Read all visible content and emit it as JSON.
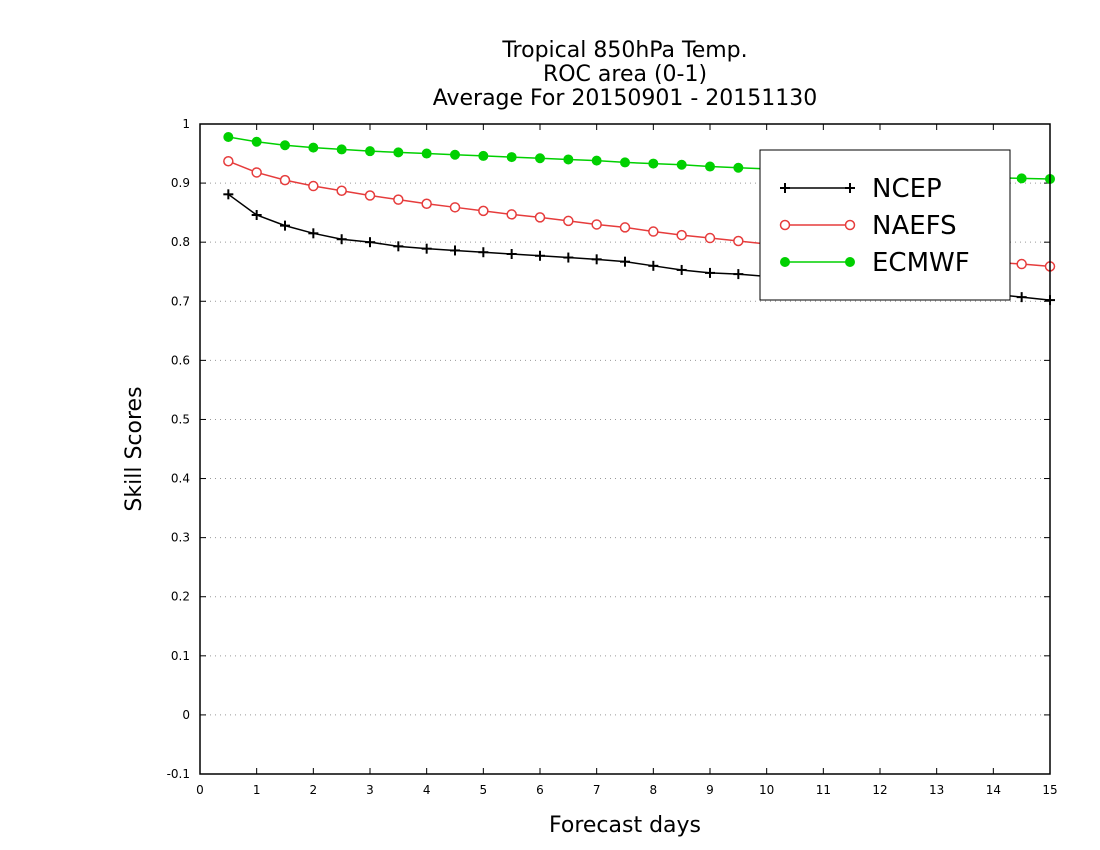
{
  "chart_data": {
    "type": "line",
    "title": [
      "Tropical 850hPa Temp.",
      "ROC area (0-1)",
      "Average For 20150901 - 20151130"
    ],
    "xlabel": "Forecast days",
    "ylabel": "Skill Scores",
    "xlim": [
      0,
      15
    ],
    "ylim": [
      -0.1,
      1
    ],
    "xticks": [
      "0",
      "1",
      "2",
      "3",
      "4",
      "5",
      "6",
      "7",
      "8",
      "9",
      "10",
      "11",
      "12",
      "13",
      "14",
      "15"
    ],
    "yticks": [
      "-0.1",
      "0",
      "0.1",
      "0.2",
      "0.3",
      "0.4",
      "0.5",
      "0.6",
      "0.7",
      "0.8",
      "0.9",
      "1"
    ],
    "grid": "horizontal dotted",
    "legend_position": "top-right",
    "x": [
      0.5,
      1,
      1.5,
      2,
      2.5,
      3,
      3.5,
      4,
      4.5,
      5,
      5.5,
      6,
      6.5,
      7,
      7.5,
      8,
      8.5,
      9,
      9.5,
      10,
      10.5,
      11,
      11.5,
      12,
      12.5,
      13,
      13.5,
      14,
      14.5,
      15
    ],
    "series": [
      {
        "name": "NCEP",
        "color": "#000000",
        "marker": "plus",
        "values": [
          0.881,
          0.846,
          0.828,
          0.815,
          0.805,
          0.8,
          0.793,
          0.789,
          0.786,
          0.783,
          0.78,
          0.777,
          0.774,
          0.771,
          0.767,
          0.76,
          0.753,
          0.748,
          0.746,
          0.742,
          0.738,
          0.735,
          0.732,
          0.728,
          0.724,
          0.72,
          0.716,
          0.712,
          0.707,
          0.702
        ]
      },
      {
        "name": "NAEFS",
        "color": "#e63c3c",
        "marker": "open-circle",
        "values": [
          0.937,
          0.918,
          0.905,
          0.895,
          0.887,
          0.879,
          0.872,
          0.865,
          0.859,
          0.853,
          0.847,
          0.842,
          0.836,
          0.83,
          0.825,
          0.818,
          0.812,
          0.807,
          0.802,
          0.797,
          0.793,
          0.789,
          0.785,
          0.781,
          0.777,
          0.773,
          0.769,
          0.766,
          0.763,
          0.759
        ]
      },
      {
        "name": "ECMWF",
        "color": "#00d000",
        "marker": "filled-circle",
        "values": [
          0.978,
          0.97,
          0.964,
          0.96,
          0.957,
          0.954,
          0.952,
          0.95,
          0.948,
          0.946,
          0.944,
          0.942,
          0.94,
          0.938,
          0.935,
          0.933,
          0.931,
          0.928,
          0.926,
          0.924,
          0.922,
          0.92,
          0.918,
          0.916,
          0.914,
          0.912,
          0.91,
          0.909,
          0.908,
          0.907
        ]
      }
    ]
  }
}
